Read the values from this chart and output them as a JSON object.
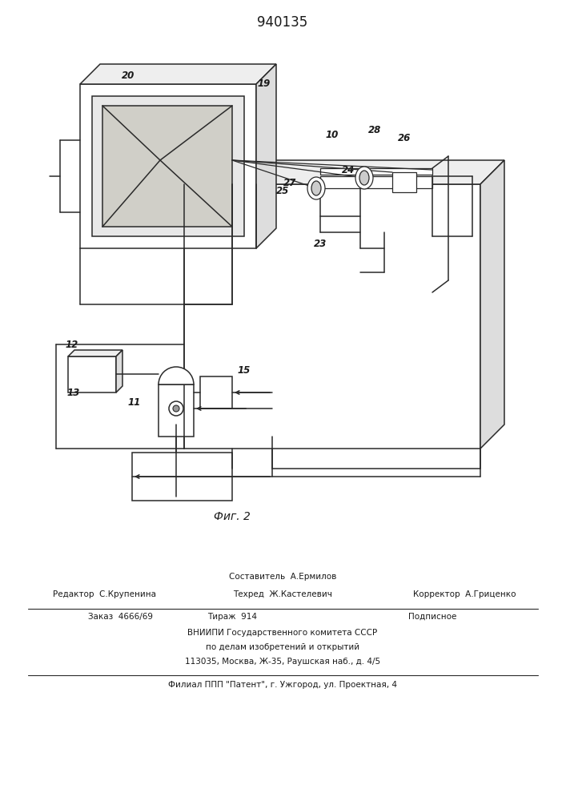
{
  "patent_number": "940135",
  "fig_label": "Фиг. 2",
  "background_color": "#ffffff",
  "line_color": "#2a2a2a",
  "text_color": "#1a1a1a",
  "lw": 1.1,
  "footer": {
    "sestavitel": "Составитель  А.Ермилов",
    "redaktor": "Редактор  С.Крупенина",
    "tehred": "Техред  Ж.Кастелевич",
    "korrektor": "Корректор  А.Гриценко",
    "zakaz": "Заказ  4666/69",
    "tirazh": "Тираж  914",
    "podpisnoe": "Подписное",
    "vniipp": "ВНИИПИ Государственного комитета СССР",
    "po_delam": "по делам изобретений и открытий",
    "address": "113035, Москва, Ж-35, Раушская наб., д. 4/5",
    "filial": "Филиал ППП \"Патент\", г. Ужгород, ул. Проектная, 4"
  }
}
